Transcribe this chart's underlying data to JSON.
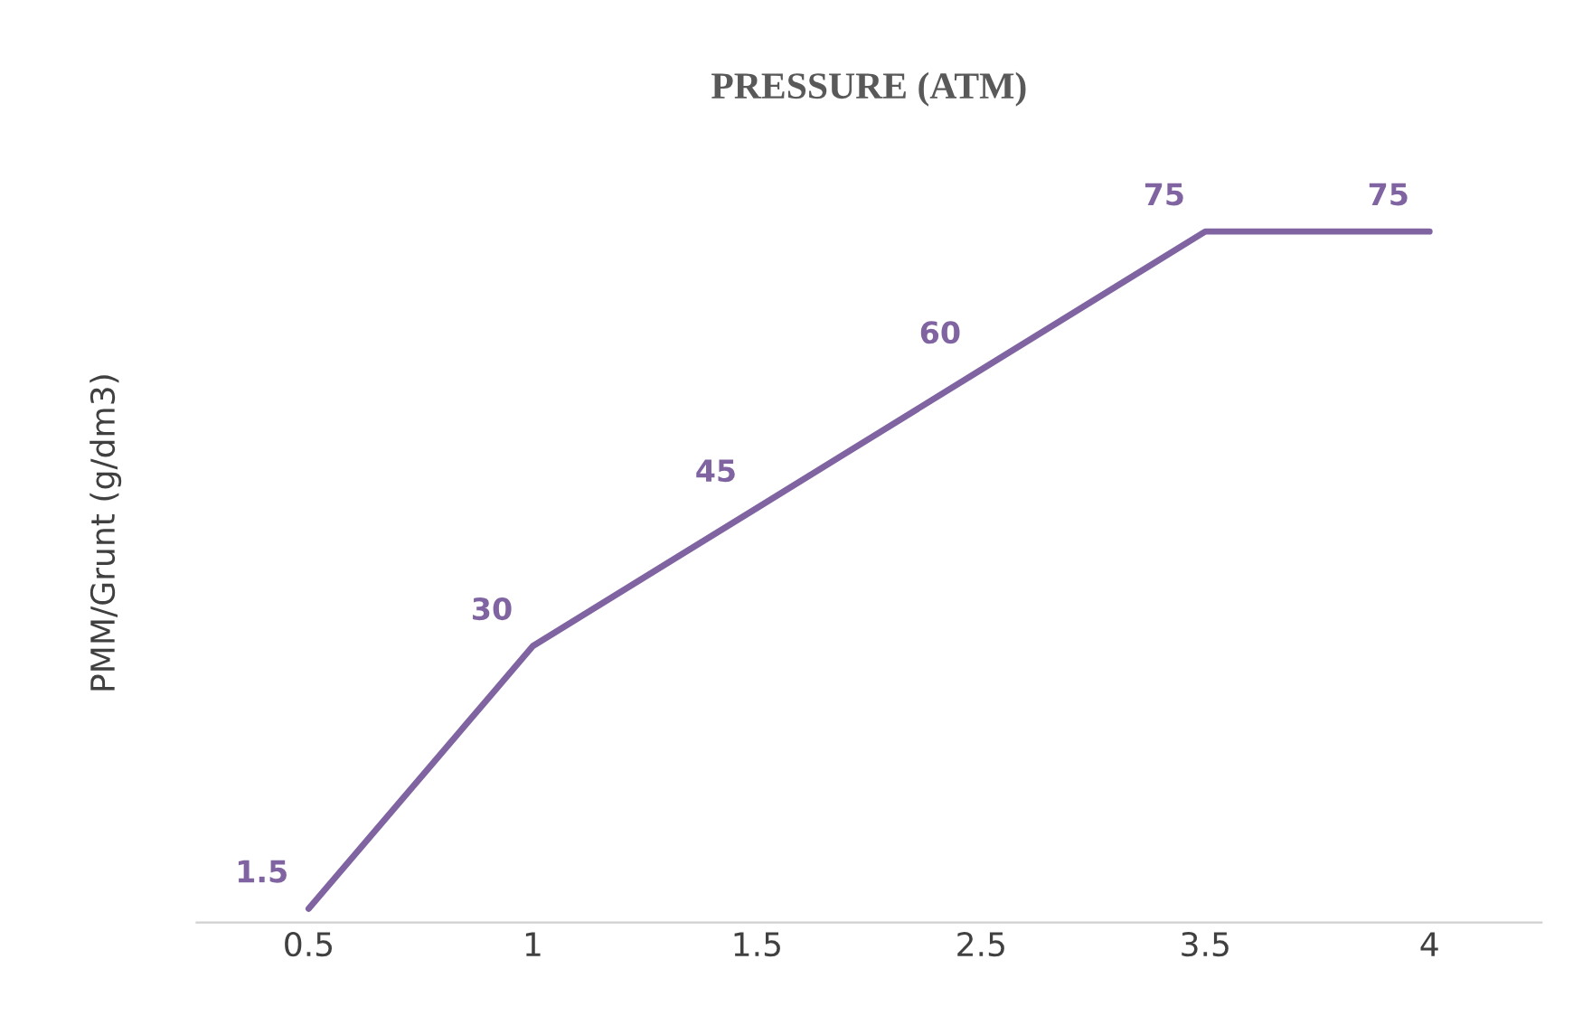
{
  "chart_data": {
    "type": "line",
    "title": "PRESSURE (ATM)",
    "ylabel": "PMM/Grunt (g/dm3)",
    "categories": [
      "0.5",
      "1",
      "1.5",
      "2.5",
      "3.5",
      "4"
    ],
    "series": [
      {
        "color": "#8064a2",
        "values": [
          1.5,
          30,
          45,
          60,
          75,
          75
        ]
      }
    ],
    "data_labels": true,
    "grid": false,
    "legend": false,
    "line_style": "solid",
    "tick_labels": "x"
  }
}
